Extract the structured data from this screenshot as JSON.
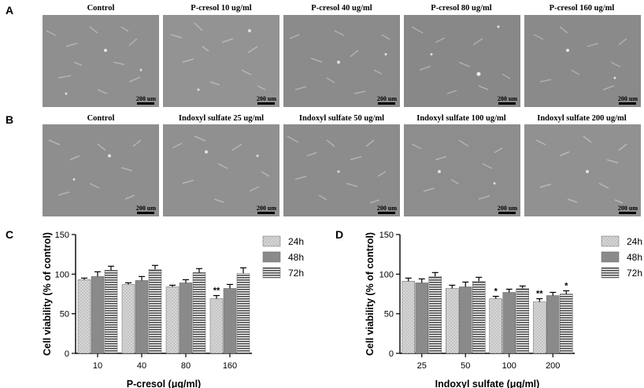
{
  "panels": {
    "A": {
      "letter": "A",
      "images": [
        {
          "title": "Control",
          "scale": "200 um"
        },
        {
          "title": "P-cresol 10 ug/ml",
          "scale": "200 um"
        },
        {
          "title": "P-cresol 40 ug/ml",
          "scale": "200 um"
        },
        {
          "title": "P-cresol 80 ug/ml",
          "scale": "200 um"
        },
        {
          "title": "P-cresol 160 ug/ml",
          "scale": "200 um"
        }
      ]
    },
    "B": {
      "letter": "B",
      "images": [
        {
          "title": "Control",
          "scale": "200 um"
        },
        {
          "title": "Indoxyl sulfate 25 ug/ml",
          "scale": "200 um"
        },
        {
          "title": "Indoxyl sulfate 50 ug/ml",
          "scale": "200 um"
        },
        {
          "title": "Indoxyl sulfate 100 ug/ml",
          "scale": "200 um"
        },
        {
          "title": "Indoxyl sulfate 200 ug/ml",
          "scale": "200 um"
        }
      ]
    },
    "C": {
      "letter": "C"
    },
    "D": {
      "letter": "D"
    }
  },
  "chart_data": [
    {
      "type": "bar",
      "panel": "C",
      "categories": [
        "10",
        "40",
        "80",
        "160"
      ],
      "series": [
        {
          "name": "24h",
          "values": [
            93,
            87,
            84,
            69
          ],
          "errors": [
            2,
            2,
            2,
            4
          ]
        },
        {
          "name": "48h",
          "values": [
            97,
            92,
            89,
            82
          ],
          "errors": [
            6,
            5,
            4,
            5
          ]
        },
        {
          "name": "72h",
          "values": [
            105,
            106,
            102,
            101
          ],
          "errors": [
            5,
            5,
            5,
            7
          ]
        }
      ],
      "significance": [
        {
          "category": "160",
          "series": "24h",
          "mark": "**"
        }
      ],
      "xlabel": "P-cresol (μg/ml)",
      "ylabel": "Cell viability (% of control)",
      "ylim": [
        0,
        150
      ],
      "yticks": [
        0,
        50,
        100,
        150
      ],
      "legend": "right",
      "series_colors": [
        "#d6d6d6",
        "#8a8a8a",
        "#4a4a4a"
      ]
    },
    {
      "type": "bar",
      "panel": "D",
      "categories": [
        "25",
        "50",
        "100",
        "200"
      ],
      "series": [
        {
          "name": "24h",
          "values": [
            91,
            82,
            69,
            65
          ],
          "errors": [
            4,
            4,
            3,
            4
          ]
        },
        {
          "name": "48h",
          "values": [
            89,
            84,
            77,
            73
          ],
          "errors": [
            5,
            6,
            4,
            4
          ]
        },
        {
          "name": "72h",
          "values": [
            97,
            91,
            82,
            75
          ],
          "errors": [
            5,
            5,
            3,
            4
          ]
        }
      ],
      "significance": [
        {
          "category": "100",
          "series": "24h",
          "mark": "*"
        },
        {
          "category": "200",
          "series": "24h",
          "mark": "**"
        },
        {
          "category": "200",
          "series": "72h",
          "mark": "*"
        }
      ],
      "xlabel": "Indoxyl sulfate (μg/ml)",
      "ylabel": "Cell viability (% of control)",
      "ylim": [
        0,
        150
      ],
      "yticks": [
        0,
        50,
        100,
        150
      ],
      "legend": "right",
      "series_colors": [
        "#d6d6d6",
        "#8a8a8a",
        "#4a4a4a"
      ]
    }
  ]
}
